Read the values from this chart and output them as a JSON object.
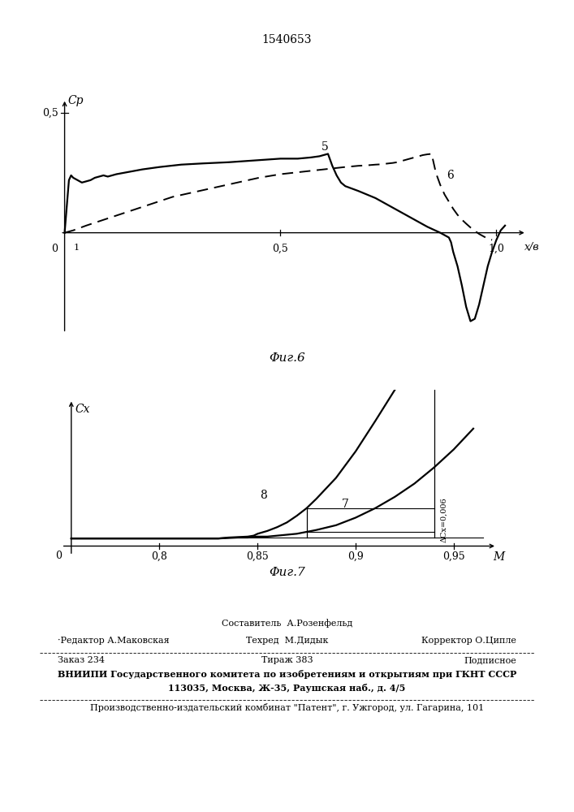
{
  "title": "1540653",
  "fig6_caption": "Φиг.6",
  "fig7_caption": "Φиг.7",
  "footer_line1_center": "Составитель  А.Розенфельд",
  "footer_line2_left": "·Редактор А.Маковская",
  "footer_line2_center": "Техред  М.Дидык",
  "footer_line2_right": "Корректор О.Ципле",
  "footer_line3_left": "Заказ 234",
  "footer_line3_center": "Тираж 383",
  "footer_line3_right": "Подписное",
  "footer_line4": "ВНИИПИ Государственного комитета по изобретениям и открытиям при ГКНТ СССР",
  "footer_line5": "113035, Москва, Ж-35, Раушская наб., д. 4/5",
  "footer_line6": "Производственно-издательский комбинат \"Патент\", г. Ужгород, ул. Гагарина, 101",
  "bg_color": "#ffffff",
  "fig6_curve5_x": [
    0.0,
    0.01,
    0.015,
    0.02,
    0.03,
    0.04,
    0.06,
    0.07,
    0.08,
    0.09,
    0.1,
    0.12,
    0.15,
    0.18,
    0.22,
    0.27,
    0.32,
    0.38,
    0.42,
    0.46,
    0.5,
    0.54,
    0.57,
    0.59,
    0.6,
    0.61,
    0.62,
    0.63,
    0.64,
    0.65,
    0.68,
    0.72,
    0.76,
    0.8,
    0.84,
    0.87,
    0.88,
    0.89,
    0.895,
    0.9,
    0.91,
    0.92,
    0.93,
    0.94,
    0.95,
    0.96,
    0.97,
    0.98,
    0.99,
    1.0,
    1.01,
    1.02
  ],
  "fig6_curve5_y": [
    0.0,
    0.22,
    0.24,
    0.23,
    0.22,
    0.21,
    0.22,
    0.23,
    0.235,
    0.24,
    0.235,
    0.245,
    0.255,
    0.265,
    0.275,
    0.285,
    0.29,
    0.295,
    0.3,
    0.305,
    0.31,
    0.31,
    0.315,
    0.32,
    0.325,
    0.33,
    0.28,
    0.24,
    0.21,
    0.195,
    0.175,
    0.145,
    0.105,
    0.065,
    0.025,
    0.0,
    -0.01,
    -0.02,
    -0.04,
    -0.08,
    -0.14,
    -0.22,
    -0.31,
    -0.37,
    -0.36,
    -0.3,
    -0.22,
    -0.14,
    -0.08,
    -0.03,
    0.01,
    0.03
  ],
  "fig6_curve6_x": [
    0.0,
    0.02,
    0.05,
    0.1,
    0.15,
    0.2,
    0.25,
    0.3,
    0.35,
    0.4,
    0.45,
    0.5,
    0.55,
    0.6,
    0.65,
    0.68,
    0.7,
    0.72,
    0.73,
    0.74,
    0.75,
    0.76,
    0.77,
    0.78,
    0.79,
    0.8,
    0.81,
    0.82,
    0.83,
    0.84,
    0.85,
    0.86,
    0.87,
    0.88,
    0.89,
    0.9,
    0.91,
    0.92,
    0.93,
    0.94,
    0.95,
    0.96,
    0.97,
    0.98,
    0.99
  ],
  "fig6_curve6_y": [
    0.0,
    0.01,
    0.03,
    0.06,
    0.09,
    0.12,
    0.15,
    0.17,
    0.19,
    0.21,
    0.23,
    0.245,
    0.255,
    0.265,
    0.275,
    0.28,
    0.282,
    0.285,
    0.286,
    0.288,
    0.29,
    0.292,
    0.295,
    0.3,
    0.305,
    0.31,
    0.315,
    0.32,
    0.325,
    0.328,
    0.33,
    0.25,
    0.2,
    0.16,
    0.13,
    0.1,
    0.075,
    0.055,
    0.038,
    0.022,
    0.008,
    -0.005,
    -0.015,
    -0.025,
    -0.03
  ],
  "fig7_curve7_x": [
    0.755,
    0.77,
    0.78,
    0.79,
    0.8,
    0.81,
    0.82,
    0.83,
    0.835,
    0.84,
    0.845,
    0.85,
    0.855,
    0.86,
    0.865,
    0.87,
    0.875,
    0.88,
    0.89,
    0.9,
    0.91,
    0.92,
    0.93,
    0.94,
    0.95,
    0.96
  ],
  "fig7_curve7_y": [
    0.008,
    0.008,
    0.008,
    0.008,
    0.008,
    0.008,
    0.008,
    0.008,
    0.0085,
    0.009,
    0.009,
    0.01,
    0.01,
    0.011,
    0.012,
    0.013,
    0.015,
    0.017,
    0.022,
    0.03,
    0.04,
    0.052,
    0.066,
    0.083,
    0.102,
    0.124
  ],
  "fig7_curve8_x": [
    0.755,
    0.77,
    0.78,
    0.79,
    0.8,
    0.81,
    0.82,
    0.83,
    0.835,
    0.84,
    0.845,
    0.848,
    0.85,
    0.855,
    0.86,
    0.865,
    0.87,
    0.875,
    0.88,
    0.89,
    0.9,
    0.91,
    0.92,
    0.93,
    0.94,
    0.95,
    0.96
  ],
  "fig7_curve8_y": [
    0.008,
    0.008,
    0.008,
    0.008,
    0.008,
    0.008,
    0.008,
    0.008,
    0.009,
    0.0095,
    0.01,
    0.011,
    0.013,
    0.016,
    0.02,
    0.025,
    0.032,
    0.04,
    0.05,
    0.072,
    0.1,
    0.132,
    0.165,
    0.2,
    0.235,
    0.27,
    0.305
  ]
}
